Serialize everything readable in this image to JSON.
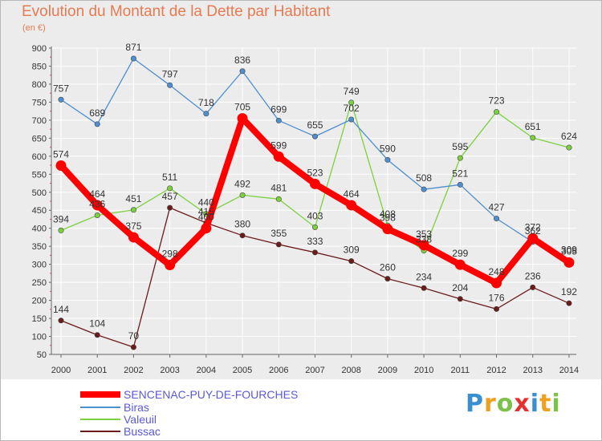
{
  "title": "Evolution du Montant de la Dette par Habitant",
  "unit": "(en €)",
  "logo_text": "Proxiti",
  "chart_data": {
    "type": "line",
    "title": "Evolution du Montant de la Dette par Habitant",
    "ylabel": "(en €)",
    "xlabel": "",
    "x": [
      "2000",
      "2001",
      "2002",
      "2003",
      "2004",
      "2005",
      "2006",
      "2007",
      "2008",
      "2009",
      "2010",
      "2011",
      "2012",
      "2013",
      "2014"
    ],
    "ylim": [
      50,
      900
    ],
    "yticks": [
      50,
      100,
      150,
      200,
      250,
      300,
      350,
      400,
      450,
      500,
      550,
      600,
      650,
      700,
      750,
      800,
      850,
      900
    ],
    "grid": true,
    "legend_position": "bottom-left",
    "series": [
      {
        "name": "SENCENAC-PUY-DE-FOURCHES",
        "color": "#ff0000",
        "values": [
          574,
          464,
          375,
          298,
          400,
          705,
          599,
          523,
          464,
          398,
          353,
          299,
          248,
          372,
          305
        ],
        "labels": [
          "574",
          "464",
          "375",
          "298",
          "",
          "705",
          "599",
          "523",
          "464",
          "",
          "",
          "299",
          "248",
          "",
          ""
        ]
      },
      {
        "name": "Biras",
        "color": "#4f8fcf",
        "values": [
          757,
          689,
          871,
          797,
          718,
          836,
          699,
          655,
          702,
          590,
          508,
          521,
          427,
          362,
          309
        ],
        "labels": [
          "757",
          "689",
          "871",
          "797",
          "718",
          "836",
          "699",
          "655",
          "702",
          "590",
          "508",
          "521",
          "427",
          "362",
          "309"
        ]
      },
      {
        "name": "Valeuil",
        "color": "#7dd13f",
        "values": [
          394,
          436,
          451,
          511,
          440,
          492,
          481,
          403,
          749,
          408,
          338,
          595,
          723,
          651,
          624
        ],
        "labels": [
          "394",
          "436",
          "451",
          "511",
          "440",
          "492",
          "481",
          "403",
          "749",
          "408",
          "338",
          "595",
          "723",
          "651",
          "624"
        ]
      },
      {
        "name": "Bussac",
        "color": "#6b1b1b",
        "values": [
          144,
          104,
          70,
          457,
          415,
          380,
          355,
          333,
          309,
          260,
          234,
          204,
          176,
          236,
          192
        ],
        "labels": [
          "144",
          "104",
          "70",
          "457",
          "415",
          "380",
          "355",
          "333",
          "309",
          "260",
          "234",
          "204",
          "176",
          "236",
          "192"
        ]
      }
    ],
    "overlap_labels": [
      {
        "series": 0,
        "index": 4,
        "text": "400"
      },
      {
        "series": 0,
        "index": 9,
        "text": "398"
      },
      {
        "series": 0,
        "index": 10,
        "text": "353"
      },
      {
        "series": 0,
        "index": 13,
        "text": "372"
      },
      {
        "series": 0,
        "index": 14,
        "text": "305"
      }
    ]
  }
}
